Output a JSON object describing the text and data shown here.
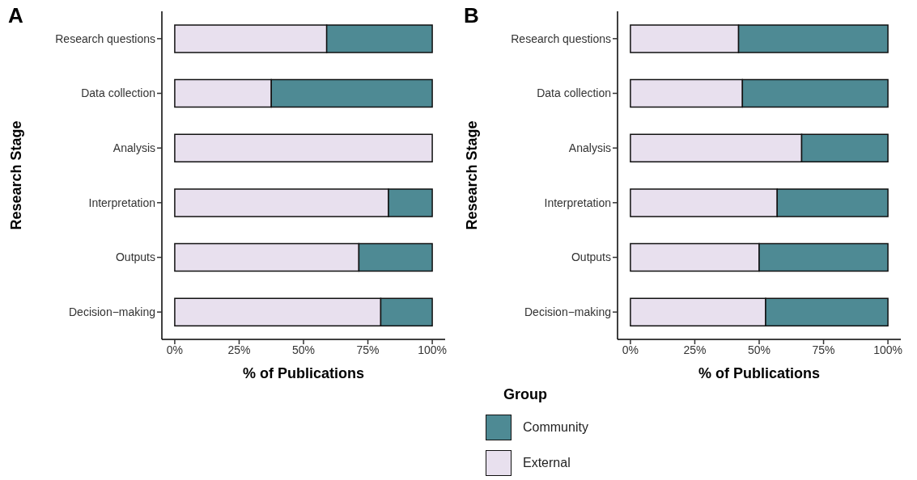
{
  "chart_data": [
    {
      "type": "bar",
      "title": "A",
      "orientation": "horizontal",
      "stacked": true,
      "categories": [
        "Research questions",
        "Data collection",
        "Analysis",
        "Interpretation",
        "Outputs",
        "Decision−making"
      ],
      "series": [
        {
          "color": "#e8e0ee",
          "values": [
            59,
            37.5,
            100,
            83,
            71.5,
            80
          ]
        },
        {
          "color": "#4e8a94",
          "values": [
            41,
            62.5,
            0,
            17,
            28.5,
            20
          ]
        }
      ],
      "xlim": [
        -5,
        105
      ],
      "xticks": [
        {
          "value": 0,
          "label": "0%"
        },
        {
          "value": 25,
          "label": "25%"
        },
        {
          "value": 50,
          "label": "50%"
        },
        {
          "value": 75,
          "label": "75%"
        },
        {
          "value": 100,
          "label": "100%"
        }
      ],
      "xlabel": "% of Publications",
      "ylabel": "Research Stage",
      "grid": false,
      "legend": false
    },
    {
      "type": "bar",
      "title": "B",
      "orientation": "horizontal",
      "stacked": true,
      "categories": [
        "Research questions",
        "Data collection",
        "Analysis",
        "Interpretation",
        "Outputs",
        "Decision−making"
      ],
      "series": [
        {
          "name": "External",
          "color": "#e8e0ee",
          "values": [
            42,
            43.5,
            66.5,
            57,
            50,
            52.5
          ]
        },
        {
          "name": "Community",
          "color": "#4e8a94",
          "values": [
            58,
            56.5,
            33.5,
            43,
            50,
            47.5
          ]
        }
      ],
      "xlim": [
        -5,
        105
      ],
      "xticks": [
        {
          "value": 0,
          "label": "0%"
        },
        {
          "value": 25,
          "label": "25%"
        },
        {
          "value": 50,
          "label": "50%"
        },
        {
          "value": 75,
          "label": "75%"
        },
        {
          "value": 100,
          "label": "100%"
        }
      ],
      "xlabel": "% of Publications",
      "ylabel": "Research Stage",
      "grid": false,
      "legend": "bottom",
      "legend_title": "Group"
    }
  ]
}
